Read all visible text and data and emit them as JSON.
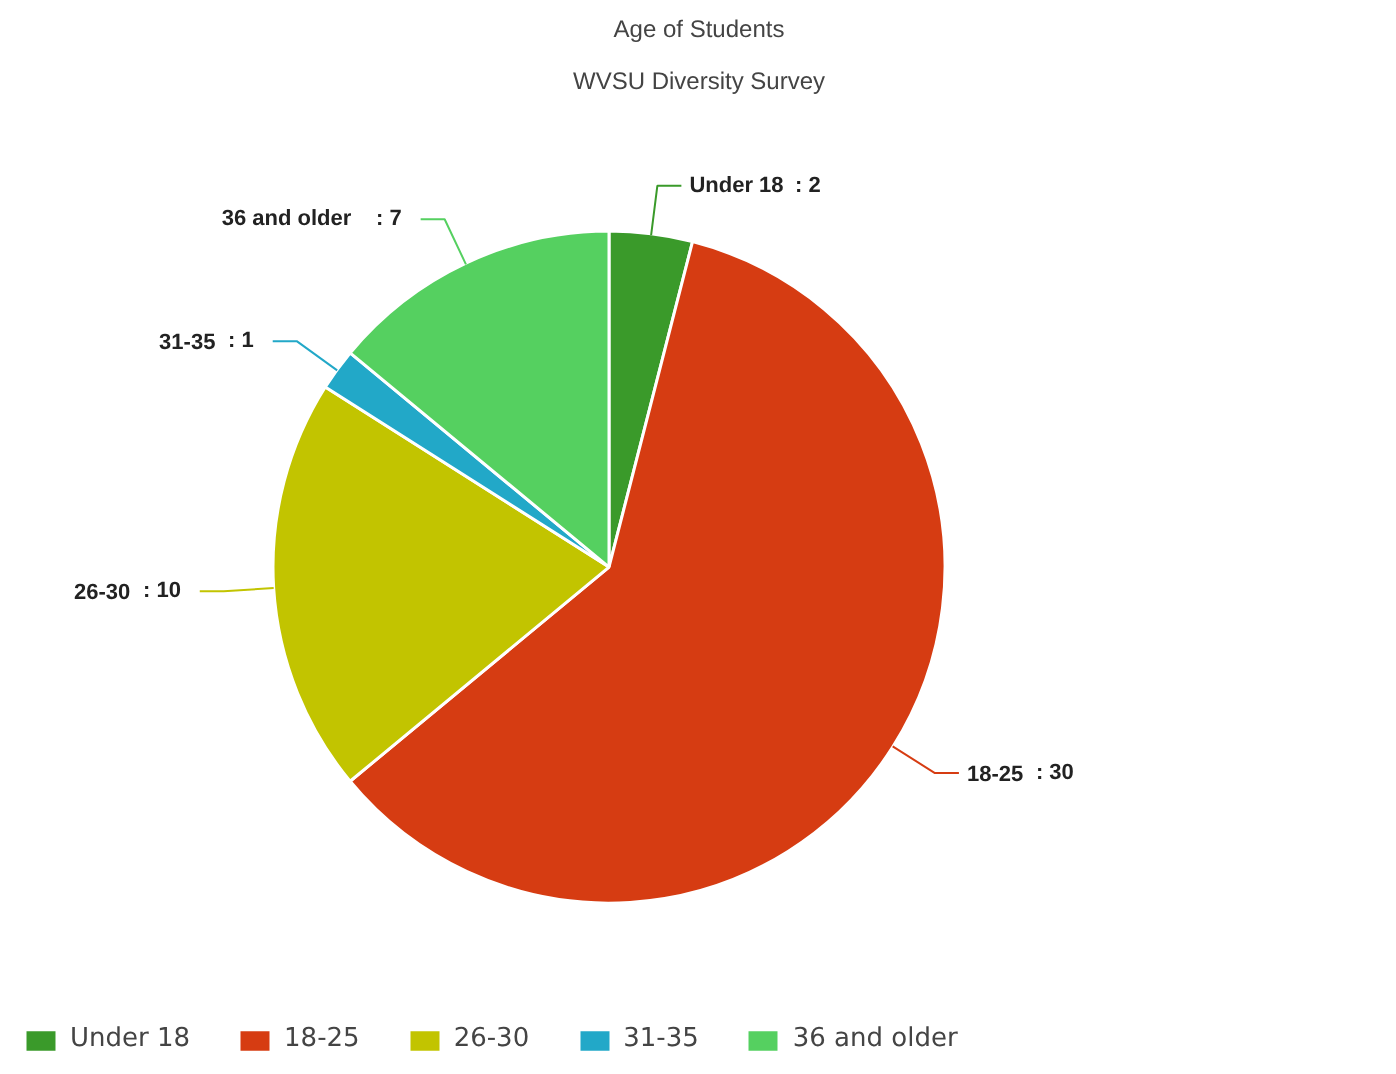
{
  "chart_data": {
    "type": "pie",
    "title": "Age of Students",
    "subtitle": "WVSU Diversity Survey",
    "categories": [
      "Under 18",
      "18-25",
      "26-30",
      "31-35",
      "36 and older"
    ],
    "values": [
      2,
      30,
      10,
      1,
      7
    ],
    "value_labels": [
      ": 2",
      ": 30",
      ": 10",
      ": 1",
      ": 7"
    ],
    "colors": [
      "#3a9a2a",
      "#d63c12",
      "#c2c400",
      "#22a8c8",
      "#55d060"
    ],
    "legend": "bottom"
  }
}
